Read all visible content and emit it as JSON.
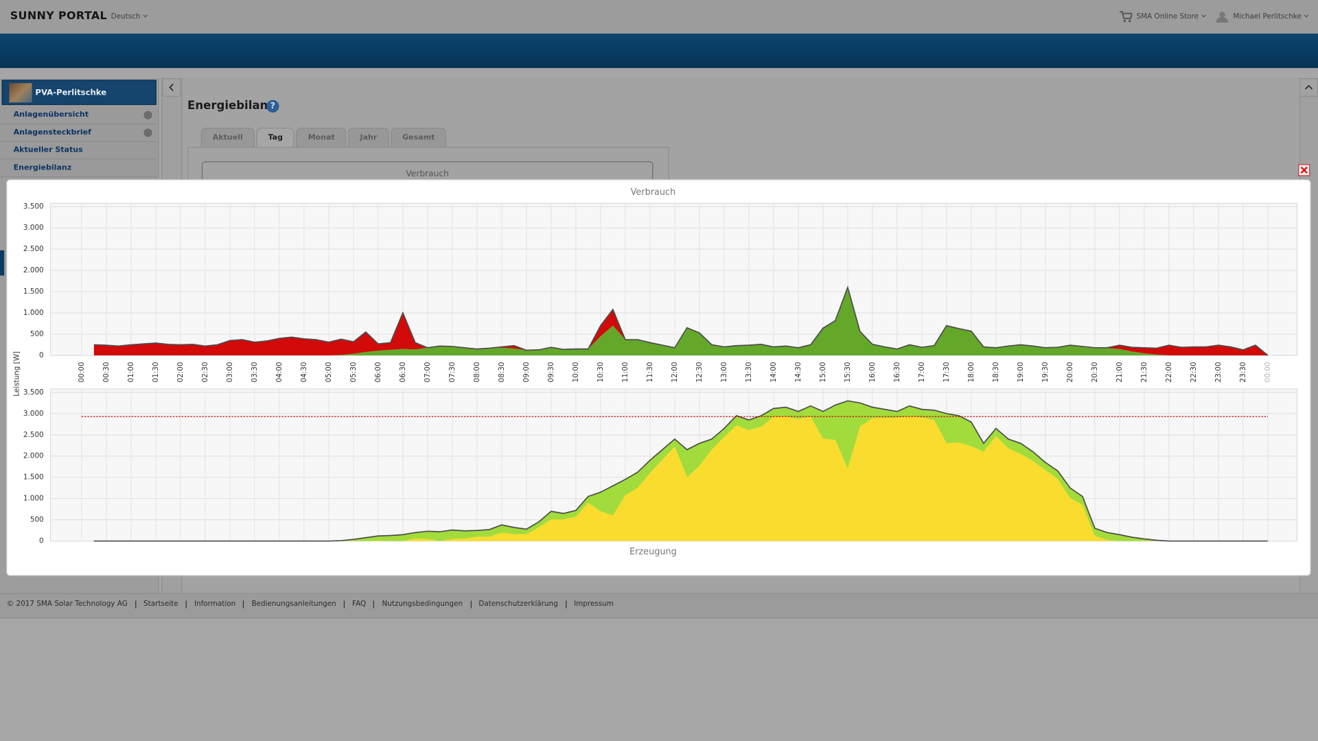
{
  "header": {
    "brand": "SUNNY PORTAL",
    "language": "Deutsch",
    "store": "SMA Online Store",
    "user": "Michael Perlitschke"
  },
  "sidebar": {
    "plant": "PVA-Perlitschke",
    "menu": [
      "Anlagenübersicht",
      "Anlagensteckbrief",
      "Aktueller Status",
      "Energiebilanz"
    ]
  },
  "content": {
    "title": "Energiebilanz",
    "tabs": [
      "Aktuell",
      "Tag",
      "Monat",
      "Jahr",
      "Gesamt"
    ],
    "panel_title": "Verbrauch"
  },
  "footer": {
    "copyright": "© 2017 SMA Solar Technology AG",
    "links": [
      "Startseite",
      "Information",
      "Bedienungsanleitungen",
      "FAQ",
      "Nutzungsbedingungen",
      "Datenschutzerklärung",
      "Impressum"
    ]
  },
  "chart_data": [
    {
      "type": "area",
      "title": "Verbrauch",
      "y_label": "Leistung [W]",
      "stacked": true,
      "grid": true,
      "x": [
        0.25,
        0.5,
        0.75,
        1,
        1.25,
        1.5,
        1.75,
        2,
        2.25,
        2.5,
        2.75,
        3,
        3.25,
        3.5,
        3.75,
        4,
        4.25,
        4.5,
        4.75,
        5,
        5.25,
        5.5,
        5.75,
        6,
        6.25,
        6.5,
        6.75,
        7,
        7.25,
        7.5,
        7.75,
        8,
        8.25,
        8.5,
        8.75,
        9,
        9.25,
        9.5,
        9.75,
        10,
        10.25,
        10.5,
        10.75,
        11,
        11.25,
        11.5,
        11.75,
        12,
        12.25,
        12.5,
        12.75,
        13,
        13.25,
        13.5,
        13.75,
        14,
        14.25,
        14.5,
        14.75,
        15,
        15.25,
        15.5,
        15.75,
        16,
        16.25,
        16.5,
        16.75,
        17,
        17.25,
        17.5,
        17.75,
        18,
        18.25,
        18.5,
        18.75,
        19,
        19.25,
        19.5,
        19.75,
        20,
        20.25,
        20.5,
        20.75,
        21,
        21.25,
        21.5,
        21.75,
        22,
        22.25,
        22.5,
        22.75,
        23,
        23.25,
        23.5,
        23.75,
        24
      ],
      "xlim": [
        -0.63,
        24.59
      ],
      "xticks": [
        {
          "value": 0,
          "label": "00:00"
        },
        {
          "value": 0.5,
          "label": "00:30"
        },
        {
          "value": 1,
          "label": "01:00"
        },
        {
          "value": 1.5,
          "label": "01:30"
        },
        {
          "value": 2,
          "label": "02:00"
        },
        {
          "value": 2.5,
          "label": "02:30"
        },
        {
          "value": 3,
          "label": "03:00"
        },
        {
          "value": 3.5,
          "label": "03:30"
        },
        {
          "value": 4,
          "label": "04:00"
        },
        {
          "value": 4.5,
          "label": "04:30"
        },
        {
          "value": 5,
          "label": "05:00"
        },
        {
          "value": 5.5,
          "label": "05:30"
        },
        {
          "value": 6,
          "label": "06:00"
        },
        {
          "value": 6.5,
          "label": "06:30"
        },
        {
          "value": 7,
          "label": "07:00"
        },
        {
          "value": 7.5,
          "label": "07:30"
        },
        {
          "value": 8,
          "label": "08:00"
        },
        {
          "value": 8.5,
          "label": "08:30"
        },
        {
          "value": 9,
          "label": "09:00"
        },
        {
          "value": 9.5,
          "label": "09:30"
        },
        {
          "value": 10,
          "label": "10:00"
        },
        {
          "value": 10.5,
          "label": "10:30"
        },
        {
          "value": 11,
          "label": "11:00"
        },
        {
          "value": 11.5,
          "label": "11:30"
        },
        {
          "value": 12,
          "label": "12:00"
        },
        {
          "value": 12.5,
          "label": "12:30"
        },
        {
          "value": 13,
          "label": "13:00"
        },
        {
          "value": 13.5,
          "label": "13:30"
        },
        {
          "value": 14,
          "label": "14:00"
        },
        {
          "value": 14.5,
          "label": "14:30"
        },
        {
          "value": 15,
          "label": "15:00"
        },
        {
          "value": 15.5,
          "label": "15:30"
        },
        {
          "value": 16,
          "label": "16:00"
        },
        {
          "value": 16.5,
          "label": "16:30"
        },
        {
          "value": 17,
          "label": "17:00"
        },
        {
          "value": 17.5,
          "label": "17:30"
        },
        {
          "value": 18,
          "label": "18:00"
        },
        {
          "value": 18.5,
          "label": "18:30"
        },
        {
          "value": 19,
          "label": "19:00"
        },
        {
          "value": 19.5,
          "label": "19:30"
        },
        {
          "value": 20,
          "label": "20:00"
        },
        {
          "value": 20.5,
          "label": "20:30"
        },
        {
          "value": 21,
          "label": "21:00"
        },
        {
          "value": 21.5,
          "label": "21:30"
        },
        {
          "value": 22,
          "label": "22:00"
        },
        {
          "value": 22.5,
          "label": "22:30"
        },
        {
          "value": 23,
          "label": "23:00"
        },
        {
          "value": 23.5,
          "label": "23:30"
        },
        {
          "value": 24,
          "label": "00:00"
        }
      ],
      "ylim": [
        0,
        3500
      ],
      "yticks": [
        0,
        500,
        {
          "value": 1000,
          "label": "1.000"
        },
        {
          "value": 1500,
          "label": "1.500"
        },
        {
          "value": 2000,
          "label": "2.000"
        },
        {
          "value": 2500,
          "label": "2.500"
        },
        {
          "value": 3000,
          "label": "3.000"
        },
        {
          "value": 3500,
          "label": "3.500"
        }
      ],
      "series": [
        {
          "color": "#64a82a",
          "values": [
            0,
            0,
            0,
            0,
            0,
            0,
            0,
            0,
            0,
            0,
            0,
            0,
            0,
            0,
            0,
            0,
            0,
            0,
            0,
            0,
            10,
            40,
            80,
            110,
            130,
            150,
            140,
            180,
            220,
            210,
            180,
            150,
            170,
            180,
            160,
            120,
            130,
            190,
            140,
            150,
            150,
            450,
            700,
            370,
            370,
            300,
            240,
            180,
            650,
            530,
            250,
            200,
            230,
            240,
            260,
            200,
            220,
            180,
            250,
            640,
            820,
            1600,
            560,
            260,
            200,
            150,
            250,
            190,
            230,
            700,
            630,
            570,
            200,
            180,
            220,
            250,
            220,
            180,
            190,
            240,
            200,
            180,
            170,
            150,
            90,
            50,
            20,
            0,
            0,
            0,
            0,
            0,
            0,
            0,
            0,
            0
          ]
        },
        {
          "color": "#d20a0a",
          "values": [
            250,
            240,
            220,
            250,
            270,
            290,
            260,
            250,
            260,
            220,
            250,
            350,
            370,
            310,
            340,
            400,
            430,
            390,
            370,
            310,
            370,
            280,
            470,
            160,
            170,
            850,
            160,
            0,
            0,
            0,
            0,
            0,
            0,
            20,
            70,
            0,
            0,
            0,
            0,
            0,
            0,
            250,
            380,
            0,
            0,
            0,
            0,
            0,
            0,
            0,
            0,
            0,
            0,
            0,
            0,
            0,
            0,
            0,
            0,
            0,
            0,
            0,
            0,
            0,
            0,
            0,
            0,
            0,
            0,
            0,
            0,
            0,
            0,
            0,
            0,
            0,
            0,
            0,
            0,
            0,
            10,
            0,
            10,
            90,
            100,
            130,
            150,
            240,
            190,
            200,
            200,
            240,
            200,
            130,
            240,
            0
          ]
        }
      ]
    },
    {
      "type": "area",
      "title": "Erzeugung",
      "stacked": true,
      "grid": true,
      "limit": 2930,
      "limit_color": "#cc0000",
      "ylim": [
        0,
        3500
      ],
      "yticks": [
        0,
        500,
        {
          "value": 1000,
          "label": "1.000"
        },
        {
          "value": 1500,
          "label": "1.500"
        },
        {
          "value": 2000,
          "label": "2.000"
        },
        {
          "value": 2500,
          "label": "2.500"
        },
        {
          "value": 3000,
          "label": "3.000"
        },
        {
          "value": 3500,
          "label": "3.500"
        }
      ],
      "series": [
        {
          "color": "#f9dc2e",
          "values": [
            0,
            0,
            0,
            0,
            0,
            0,
            0,
            0,
            0,
            0,
            0,
            0,
            0,
            0,
            0,
            0,
            0,
            0,
            0,
            0,
            0,
            0,
            0,
            10,
            0,
            0,
            60,
            50,
            0,
            50,
            60,
            100,
            100,
            200,
            160,
            160,
            320,
            510,
            510,
            570,
            900,
            700,
            600,
            1080,
            1250,
            1600,
            1910,
            2220,
            1500,
            1770,
            2150,
            2450,
            2720,
            2610,
            2690,
            2920,
            2930,
            2870,
            2930,
            2410,
            2380,
            1700,
            2690,
            2890,
            2900,
            2900,
            2930,
            2910,
            2850,
            2300,
            2320,
            2230,
            2100,
            2470,
            2180,
            2050,
            1880,
            1670,
            1460,
            1010,
            850,
            120,
            30,
            0,
            0,
            0,
            0,
            0,
            0,
            0,
            0,
            0,
            0,
            0,
            0,
            0
          ]
        },
        {
          "color": "#a2dc3c",
          "values": [
            0,
            0,
            0,
            0,
            0,
            0,
            0,
            0,
            0,
            0,
            0,
            0,
            0,
            0,
            0,
            0,
            0,
            0,
            0,
            0,
            10,
            40,
            80,
            110,
            130,
            150,
            140,
            180,
            220,
            210,
            180,
            150,
            170,
            180,
            160,
            120,
            130,
            190,
            140,
            150,
            150,
            450,
            700,
            370,
            370,
            300,
            240,
            180,
            650,
            530,
            250,
            200,
            230,
            240,
            260,
            200,
            220,
            180,
            250,
            640,
            820,
            1600,
            560,
            260,
            200,
            150,
            250,
            190,
            230,
            700,
            630,
            570,
            200,
            180,
            220,
            250,
            220,
            180,
            190,
            240,
            200,
            180,
            170,
            150,
            90,
            50,
            20,
            0,
            0,
            0,
            0,
            0,
            0,
            0,
            0,
            0
          ]
        }
      ]
    }
  ]
}
